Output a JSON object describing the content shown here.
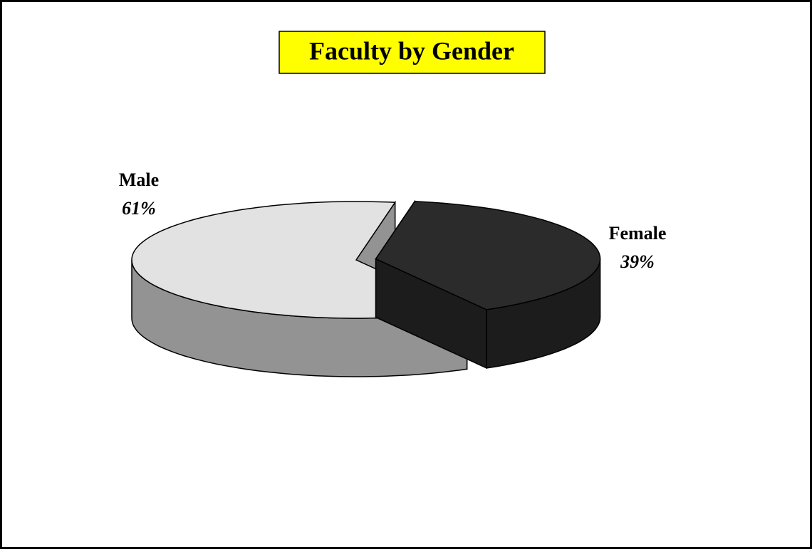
{
  "chart_data": {
    "type": "pie",
    "title": "Faculty by Gender",
    "categories": [
      "Male",
      "Female"
    ],
    "values": [
      61,
      39
    ],
    "value_labels": [
      "61%",
      "39%"
    ],
    "colors": [
      "#e2e2e2",
      "#2b2b2b"
    ]
  }
}
